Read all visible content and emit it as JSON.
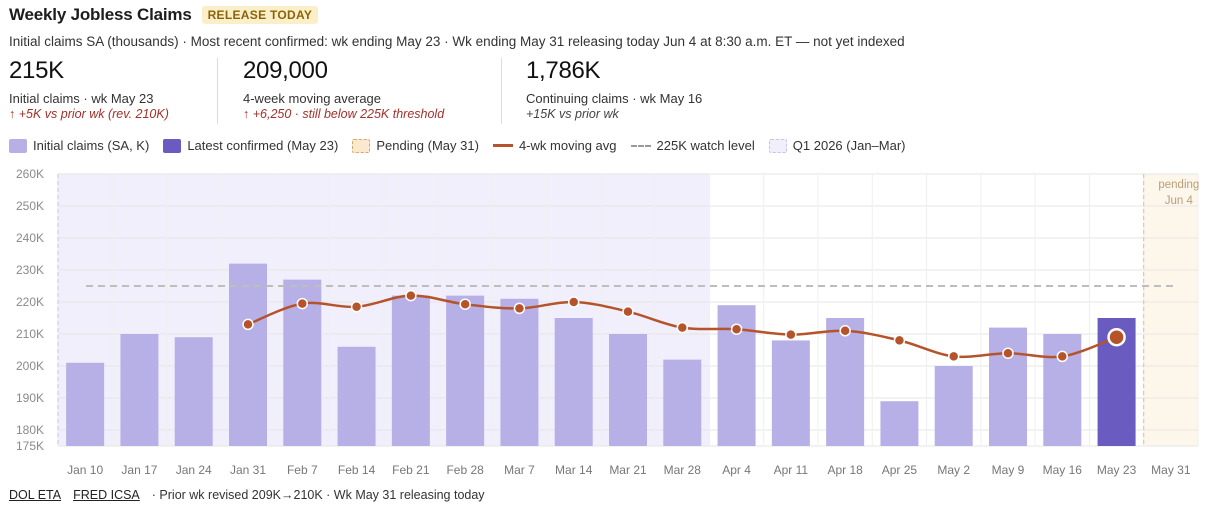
{
  "header": {
    "title": "Weekly Jobless Claims",
    "badge": "RELEASE TODAY",
    "subtitle": "Initial claims SA (thousands) · Most recent confirmed: wk ending May 23 · Wk ending May 31 releasing today Jun 4 at 8:30 a.m. ET — not yet indexed"
  },
  "kpis": [
    {
      "value": "215K",
      "label": "Initial claims · wk May 23",
      "note": "↑ +5K vs prior wk (rev. 210K)",
      "note_tone": "negative"
    },
    {
      "value": "209,000",
      "label": "4-week moving average",
      "note": "↑ +6,250 · still below 225K threshold",
      "note_tone": "negative"
    },
    {
      "value": "1,786K",
      "label": "Continuing claims · wk May 16",
      "note": "+15K vs prior wk",
      "note_tone": "neutral"
    }
  ],
  "legend": {
    "initial": "Initial claims (SA, K)",
    "latest": "Latest confirmed (May 23)",
    "pending": "Pending (May 31)",
    "mavg": "4-wk moving avg",
    "watch": "225K watch level",
    "q1": "Q1 2026 (Jan–Mar)"
  },
  "colors": {
    "bar": "#b7b0e7",
    "bar_latest": "#6a5bc0",
    "mavg_line": "#b5532a",
    "q1_band": "#f1effb",
    "pending_band": "#fdf6ea",
    "grid": "#e6e6e6",
    "watch_line": "#bdbdbd"
  },
  "chart_data": {
    "type": "bar",
    "title": "Weekly Jobless Claims",
    "categories": [
      "Jan 10",
      "Jan 17",
      "Jan 24",
      "Jan 31",
      "Feb 7",
      "Feb 14",
      "Feb 21",
      "Feb 28",
      "Mar 7",
      "Mar 14",
      "Mar 21",
      "Mar 28",
      "Apr 4",
      "Apr 11",
      "Apr 18",
      "Apr 25",
      "May 2",
      "May 9",
      "May 16",
      "May 23",
      "May 31"
    ],
    "series": [
      {
        "name": "Initial claims (SA, K)",
        "type": "bar",
        "values": [
          201,
          210,
          209,
          232,
          227,
          206,
          222,
          222,
          221,
          215,
          210,
          202,
          219,
          208,
          215,
          189,
          200,
          212,
          210,
          215,
          null
        ]
      },
      {
        "name": "4-wk moving avg",
        "type": "line",
        "values": [
          null,
          null,
          null,
          213,
          219.5,
          218.5,
          222,
          219.3,
          218,
          220,
          217,
          212,
          211.5,
          209.8,
          211,
          208,
          203,
          204,
          203,
          209,
          null
        ]
      }
    ],
    "latest_category": "May 23",
    "pending_category": "May 31",
    "pending_label": "pending Jun 4",
    "watch_level": 225,
    "q1_range": [
      "Jan 10",
      "Mar 28"
    ],
    "ylim": [
      175,
      260
    ],
    "yticks": [
      175,
      180,
      190,
      200,
      210,
      220,
      230,
      240,
      250,
      260
    ],
    "ytick_labels": [
      "175K",
      "180K",
      "190K",
      "200K",
      "210K",
      "220K",
      "230K",
      "240K",
      "250K",
      "260K"
    ],
    "grid": true,
    "xlabel": "",
    "ylabel": ""
  },
  "footer": {
    "link1": "DOL ETA",
    "link2": "FRED ICSA",
    "note": "· Prior wk revised 209K→210K · Wk May 31 releasing today"
  }
}
